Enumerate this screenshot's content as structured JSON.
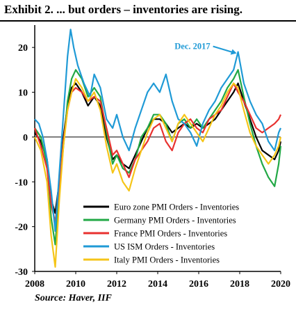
{
  "title": "Exhibit 2.  ... but orders – inventories are rising.",
  "source": "Source: Haver, IIF",
  "chart_data": {
    "type": "line",
    "xlim": [
      2008,
      2020
    ],
    "ylim": [
      -30,
      25
    ],
    "x_ticks": [
      2008,
      2010,
      2012,
      2014,
      2016,
      2018,
      2020
    ],
    "y_ticks": [
      -30,
      -20,
      -10,
      0,
      10,
      20
    ],
    "annotation": {
      "text": "Dec. 2017",
      "x": 2017.92,
      "y": 19
    },
    "legend_position": "bottom-right",
    "series": [
      {
        "name": "Euro zone PMI Orders - Inventories",
        "color": "#000000",
        "points": [
          [
            2008.0,
            1
          ],
          [
            2008.3,
            -1
          ],
          [
            2008.6,
            -5
          ],
          [
            2008.8,
            -14
          ],
          [
            2009.0,
            -17
          ],
          [
            2009.2,
            -10
          ],
          [
            2009.4,
            0
          ],
          [
            2009.6,
            7
          ],
          [
            2009.8,
            11
          ],
          [
            2010.0,
            12
          ],
          [
            2010.3,
            10
          ],
          [
            2010.6,
            7
          ],
          [
            2010.9,
            9
          ],
          [
            2011.2,
            7
          ],
          [
            2011.5,
            0
          ],
          [
            2011.8,
            -5
          ],
          [
            2012.0,
            -4
          ],
          [
            2012.3,
            -6
          ],
          [
            2012.6,
            -7
          ],
          [
            2012.9,
            -4
          ],
          [
            2013.2,
            -1
          ],
          [
            2013.5,
            2
          ],
          [
            2013.8,
            4
          ],
          [
            2014.1,
            4
          ],
          [
            2014.4,
            3
          ],
          [
            2014.7,
            1
          ],
          [
            2015.0,
            2
          ],
          [
            2015.3,
            3
          ],
          [
            2015.6,
            2
          ],
          [
            2015.9,
            3
          ],
          [
            2016.2,
            2
          ],
          [
            2016.5,
            3
          ],
          [
            2016.8,
            4
          ],
          [
            2017.1,
            6
          ],
          [
            2017.4,
            8
          ],
          [
            2017.7,
            10
          ],
          [
            2017.92,
            12
          ],
          [
            2018.2,
            8
          ],
          [
            2018.5,
            4
          ],
          [
            2018.8,
            0
          ],
          [
            2019.1,
            -3
          ],
          [
            2019.4,
            -4
          ],
          [
            2019.7,
            -5
          ],
          [
            2019.9,
            -3
          ],
          [
            2020.0,
            -1
          ]
        ]
      },
      {
        "name": "Germany PMI Orders - Inventories",
        "color": "#21a845",
        "points": [
          [
            2008.0,
            2
          ],
          [
            2008.3,
            0
          ],
          [
            2008.6,
            -6
          ],
          [
            2008.8,
            -18
          ],
          [
            2009.0,
            -24
          ],
          [
            2009.2,
            -12
          ],
          [
            2009.4,
            -2
          ],
          [
            2009.6,
            8
          ],
          [
            2009.8,
            13
          ],
          [
            2010.0,
            15
          ],
          [
            2010.3,
            13
          ],
          [
            2010.6,
            9
          ],
          [
            2010.9,
            11
          ],
          [
            2011.2,
            9
          ],
          [
            2011.5,
            1
          ],
          [
            2011.8,
            -6
          ],
          [
            2012.0,
            -4
          ],
          [
            2012.3,
            -7
          ],
          [
            2012.6,
            -8
          ],
          [
            2012.9,
            -5
          ],
          [
            2013.2,
            0
          ],
          [
            2013.5,
            2
          ],
          [
            2013.8,
            5
          ],
          [
            2014.1,
            5
          ],
          [
            2014.4,
            3
          ],
          [
            2014.7,
            -1
          ],
          [
            2015.0,
            3
          ],
          [
            2015.3,
            4
          ],
          [
            2015.6,
            2
          ],
          [
            2015.9,
            4
          ],
          [
            2016.2,
            2
          ],
          [
            2016.5,
            4
          ],
          [
            2016.8,
            6
          ],
          [
            2017.1,
            8
          ],
          [
            2017.4,
            11
          ],
          [
            2017.7,
            13
          ],
          [
            2017.92,
            15
          ],
          [
            2018.2,
            9
          ],
          [
            2018.5,
            3
          ],
          [
            2018.8,
            -2
          ],
          [
            2019.1,
            -6
          ],
          [
            2019.4,
            -9
          ],
          [
            2019.7,
            -11
          ],
          [
            2019.9,
            -6
          ],
          [
            2020.0,
            -2
          ]
        ]
      },
      {
        "name": "France PMI Orders - Inventories",
        "color": "#e8312f",
        "points": [
          [
            2008.0,
            2
          ],
          [
            2008.3,
            -2
          ],
          [
            2008.6,
            -7
          ],
          [
            2008.8,
            -15
          ],
          [
            2009.0,
            -19
          ],
          [
            2009.2,
            -11
          ],
          [
            2009.4,
            -1
          ],
          [
            2009.6,
            6
          ],
          [
            2009.8,
            10
          ],
          [
            2010.0,
            11
          ],
          [
            2010.3,
            10
          ],
          [
            2010.6,
            8
          ],
          [
            2010.9,
            9
          ],
          [
            2011.2,
            8
          ],
          [
            2011.5,
            2
          ],
          [
            2011.8,
            -4
          ],
          [
            2012.0,
            -3
          ],
          [
            2012.3,
            -6
          ],
          [
            2012.6,
            -9
          ],
          [
            2012.9,
            -5
          ],
          [
            2013.2,
            -3
          ],
          [
            2013.5,
            -1
          ],
          [
            2013.8,
            2
          ],
          [
            2014.1,
            3
          ],
          [
            2014.4,
            -1
          ],
          [
            2014.7,
            -3
          ],
          [
            2015.0,
            1
          ],
          [
            2015.3,
            3
          ],
          [
            2015.6,
            4
          ],
          [
            2015.9,
            2
          ],
          [
            2016.2,
            1
          ],
          [
            2016.5,
            4
          ],
          [
            2016.8,
            5
          ],
          [
            2017.1,
            6
          ],
          [
            2017.4,
            9
          ],
          [
            2017.7,
            12
          ],
          [
            2017.92,
            10
          ],
          [
            2018.2,
            8
          ],
          [
            2018.5,
            5
          ],
          [
            2018.8,
            2
          ],
          [
            2019.1,
            1
          ],
          [
            2019.4,
            2
          ],
          [
            2019.7,
            3
          ],
          [
            2019.9,
            4
          ],
          [
            2020.0,
            5
          ]
        ]
      },
      {
        "name": "US ISM Orders - Inventories",
        "color": "#1f9ad6",
        "points": [
          [
            2008.0,
            4
          ],
          [
            2008.2,
            3
          ],
          [
            2008.4,
            0
          ],
          [
            2008.6,
            -5
          ],
          [
            2008.8,
            -12
          ],
          [
            2009.0,
            -21
          ],
          [
            2009.2,
            -8
          ],
          [
            2009.4,
            5
          ],
          [
            2009.6,
            18
          ],
          [
            2009.75,
            24
          ],
          [
            2009.9,
            20
          ],
          [
            2010.1,
            16
          ],
          [
            2010.4,
            12
          ],
          [
            2010.7,
            9
          ],
          [
            2010.9,
            14
          ],
          [
            2011.2,
            11
          ],
          [
            2011.5,
            4
          ],
          [
            2011.8,
            2
          ],
          [
            2012.0,
            5
          ],
          [
            2012.3,
            0
          ],
          [
            2012.6,
            -3
          ],
          [
            2012.9,
            2
          ],
          [
            2013.2,
            6
          ],
          [
            2013.5,
            10
          ],
          [
            2013.8,
            12
          ],
          [
            2014.1,
            10
          ],
          [
            2014.4,
            14
          ],
          [
            2014.7,
            8
          ],
          [
            2015.0,
            4
          ],
          [
            2015.3,
            3
          ],
          [
            2015.6,
            1
          ],
          [
            2015.9,
            -2
          ],
          [
            2016.2,
            3
          ],
          [
            2016.5,
            6
          ],
          [
            2016.8,
            8
          ],
          [
            2017.1,
            11
          ],
          [
            2017.4,
            13
          ],
          [
            2017.7,
            15
          ],
          [
            2017.92,
            19
          ],
          [
            2018.2,
            12
          ],
          [
            2018.5,
            8
          ],
          [
            2018.8,
            5
          ],
          [
            2019.1,
            3
          ],
          [
            2019.4,
            -1
          ],
          [
            2019.7,
            -3
          ],
          [
            2019.9,
            1
          ],
          [
            2020.0,
            2
          ]
        ]
      },
      {
        "name": "Italy PMI Orders - Inventories",
        "color": "#f5c518",
        "points": [
          [
            2008.0,
            0
          ],
          [
            2008.3,
            -3
          ],
          [
            2008.6,
            -10
          ],
          [
            2008.8,
            -22
          ],
          [
            2009.0,
            -29
          ],
          [
            2009.2,
            -14
          ],
          [
            2009.4,
            -2
          ],
          [
            2009.6,
            6
          ],
          [
            2009.8,
            10
          ],
          [
            2010.0,
            13
          ],
          [
            2010.3,
            11
          ],
          [
            2010.6,
            8
          ],
          [
            2010.9,
            10
          ],
          [
            2011.2,
            6
          ],
          [
            2011.5,
            -2
          ],
          [
            2011.8,
            -8
          ],
          [
            2012.0,
            -6
          ],
          [
            2012.3,
            -10
          ],
          [
            2012.6,
            -12
          ],
          [
            2012.9,
            -7
          ],
          [
            2013.2,
            -3
          ],
          [
            2013.5,
            1
          ],
          [
            2013.8,
            4
          ],
          [
            2014.1,
            5
          ],
          [
            2014.4,
            2
          ],
          [
            2014.7,
            -1
          ],
          [
            2015.0,
            3
          ],
          [
            2015.3,
            5
          ],
          [
            2015.6,
            3
          ],
          [
            2015.9,
            1
          ],
          [
            2016.2,
            -1
          ],
          [
            2016.5,
            2
          ],
          [
            2016.8,
            5
          ],
          [
            2017.1,
            7
          ],
          [
            2017.4,
            10
          ],
          [
            2017.7,
            12
          ],
          [
            2017.92,
            11
          ],
          [
            2018.2,
            6
          ],
          [
            2018.5,
            1
          ],
          [
            2018.8,
            -2
          ],
          [
            2019.1,
            -4
          ],
          [
            2019.4,
            -6
          ],
          [
            2019.7,
            -4
          ],
          [
            2019.9,
            -2
          ],
          [
            2020.0,
            0
          ]
        ]
      }
    ]
  }
}
